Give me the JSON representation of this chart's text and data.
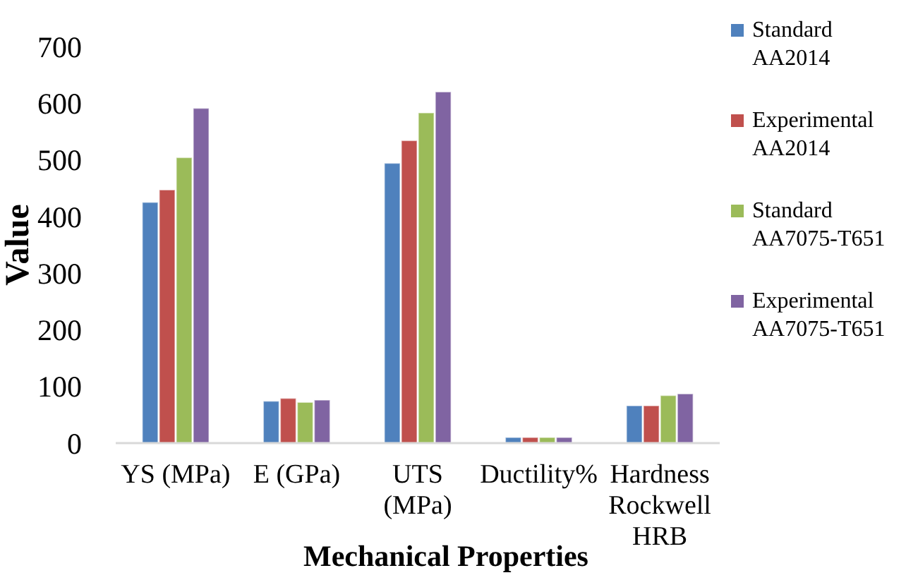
{
  "chart_data": {
    "type": "bar",
    "xlabel": "Mechanical Properties",
    "ylabel": "Value",
    "categories": [
      "YS (MPa)",
      "E (GPa)",
      "UTS (MPa)",
      "Ductility%",
      "Hardness Rockwell HRB"
    ],
    "series": [
      {
        "name": "Standard AA2014",
        "color": "#4f81bd",
        "values": [
          425,
          74,
          494,
          10,
          66
        ]
      },
      {
        "name": "Experimental AA2014",
        "color": "#c0504d",
        "values": [
          447,
          79,
          534,
          10,
          66
        ]
      },
      {
        "name": "Standard AA7075-T651",
        "color": "#9bbb59",
        "values": [
          504,
          72,
          583,
          10,
          84
        ]
      },
      {
        "name": "Experimental AA7075-T651",
        "color": "#8064a2",
        "values": [
          591,
          76,
          620,
          10,
          87
        ]
      }
    ],
    "ylim": [
      0,
      700
    ],
    "yticks": [
      0,
      100,
      200,
      300,
      400,
      500,
      600,
      700
    ],
    "grid": false,
    "legend": "right"
  }
}
